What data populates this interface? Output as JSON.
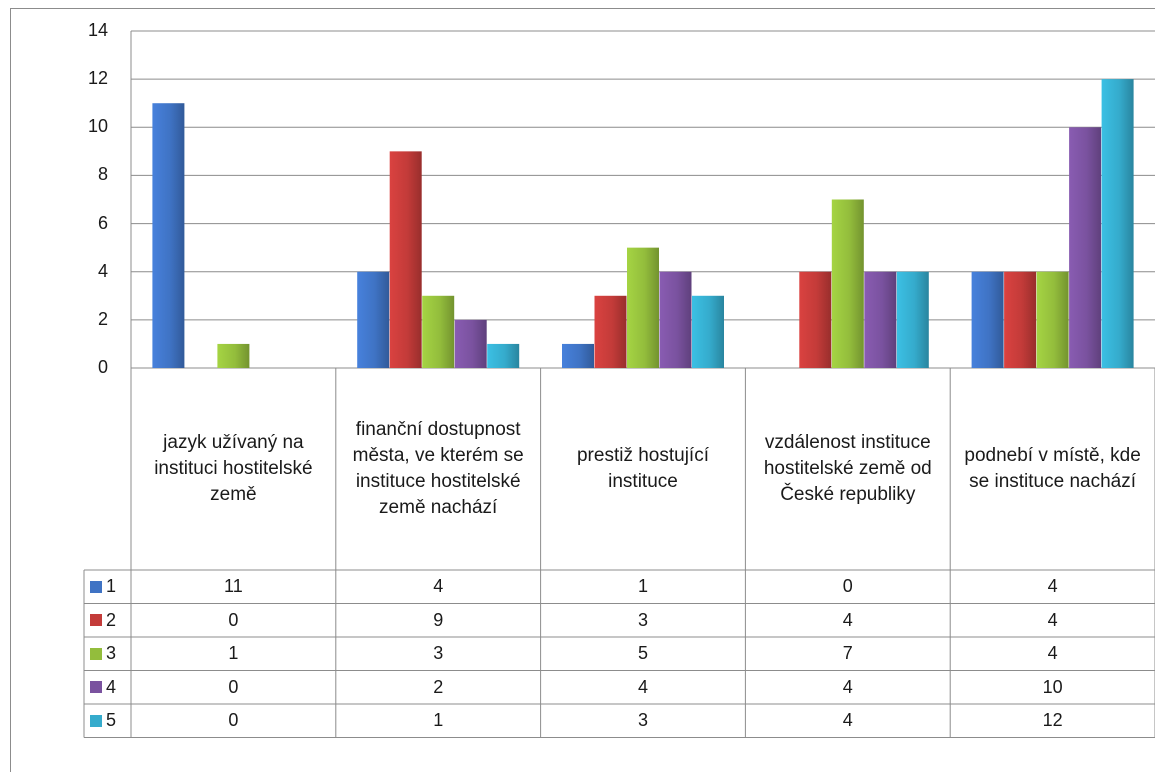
{
  "chart_data": {
    "type": "bar",
    "title": "",
    "xlabel": "",
    "ylabel": "",
    "ylim": [
      0,
      14
    ],
    "yticks": [
      0,
      2,
      4,
      6,
      8,
      10,
      12,
      14
    ],
    "grid": true,
    "legend": "data-table-left",
    "categories": [
      "jazyk užívaný na instituci hostitelské země",
      "finanční dostupnost města, ve kterém se instituce hostitelské země nachází",
      "prestiž hostující instituce",
      "vzdálenost instituce hostitelské země od České republiky",
      "podnebí v místě, kde se instituce nachází"
    ],
    "series": [
      {
        "name": "1",
        "color": "#3f73c4",
        "values": [
          11,
          4,
          1,
          0,
          4
        ]
      },
      {
        "name": "2",
        "color": "#c33b39",
        "values": [
          0,
          9,
          3,
          4,
          4
        ]
      },
      {
        "name": "3",
        "color": "#93bd3c",
        "values": [
          1,
          3,
          5,
          7,
          4
        ]
      },
      {
        "name": "4",
        "color": "#7a529f",
        "values": [
          0,
          2,
          4,
          4,
          10
        ]
      },
      {
        "name": "5",
        "color": "#35abcc",
        "values": [
          0,
          1,
          3,
          4,
          12
        ]
      }
    ]
  }
}
